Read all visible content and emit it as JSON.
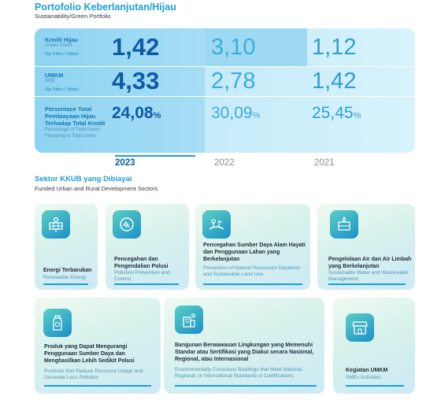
{
  "header": {
    "title": "Portofolio Keberlanjutan/Hijau",
    "subtitle": "Sustainability/Green Portfolio"
  },
  "metrics": {
    "rows": [
      {
        "label": "Kredit Hijau",
        "label_en": "Green Credit",
        "unit": "(Rp Triliun | Trillion)",
        "v2023": "1,42",
        "v2022": "3,10",
        "v2021": "1,12"
      },
      {
        "label": "UMKM",
        "label_en": "SME",
        "unit": "(Rp Triliun | Trillion)",
        "v2023": "4,33",
        "v2022": "2,78",
        "v2021": "1,42"
      },
      {
        "label": "Persentase Total Pembiayaan Hijau Terhadap Total Kredit",
        "label_en": "Percentage of Total Green Financing to Total Loans",
        "v2023": "24,08",
        "v2022": "30,09",
        "v2021": "25,45",
        "pct_sign": "%"
      }
    ],
    "years": [
      "2023",
      "2022",
      "2021"
    ]
  },
  "sectors": {
    "title": "Sektor KKUB yang Dibiayai",
    "subtitle": "Funded Urban and Rural Development Sectors",
    "cards": [
      {
        "title": "Energi Terbarukan",
        "subtitle": "Renewable Energy",
        "icon": "solar-panel-icon"
      },
      {
        "title": "Pencegahan dan Pengendalian Polusi",
        "subtitle": "Pollution Prevention and Control",
        "icon": "recycle-globe-icon"
      },
      {
        "title": "Pencegahan Sumber Daya Alam Hayati dan Penggunaan Lahan yang Berkelanjutan",
        "subtitle": "Prevention of Natural Resources Depletion and Sustainable Land Use",
        "icon": "landscape-plants-icon"
      },
      {
        "title": "Pengelolaan Air dan Air Limbah yang Berkelanjutan",
        "subtitle": "Sustainable Water and Wastewater Management",
        "icon": "water-tank-icon"
      },
      {
        "title": "Produk yang Dapat Mengurangi Penggunaan Sumber Daya dan Menghasilkan Lebih Sedikit Polusi",
        "subtitle": "Products that Reduce Resource Usage and Generate Less Pollution",
        "icon": "eco-bottle-icon"
      },
      {
        "title": "Bangunan Berwawasan Lingkungan yang Memenuhi Standar atau Sertifikasi yang Diakui secara Nasional, Regional, atau Internasional",
        "subtitle": "Environmentally Conscious Buildings that Meet National, Regional, or International Standards or Certifications",
        "icon": "green-building-icon"
      },
      {
        "title": "Kegiatan UMKM",
        "subtitle": "SMEs Activities",
        "icon": "storefront-icon"
      }
    ]
  }
}
